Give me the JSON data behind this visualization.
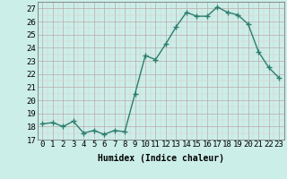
{
  "x": [
    0,
    1,
    2,
    3,
    4,
    5,
    6,
    7,
    8,
    9,
    10,
    11,
    12,
    13,
    14,
    15,
    16,
    17,
    18,
    19,
    20,
    21,
    22,
    23
  ],
  "y": [
    18.2,
    18.3,
    18.0,
    18.4,
    17.5,
    17.7,
    17.4,
    17.7,
    17.6,
    20.5,
    23.4,
    23.1,
    24.3,
    25.6,
    26.7,
    26.4,
    26.4,
    27.1,
    26.7,
    26.5,
    25.8,
    23.7,
    22.5,
    21.7
  ],
  "line_color": "#2d7d6e",
  "marker": "+",
  "marker_size": 4,
  "bg_color": "#cceee8",
  "grid_color_major": "#bbaaaa",
  "grid_color_minor": "#ddcccc",
  "xlabel": "Humidex (Indice chaleur)",
  "ylabel": "",
  "title": "",
  "xlim": [
    -0.5,
    23.5
  ],
  "ylim": [
    17,
    27.5
  ],
  "yticks": [
    17,
    18,
    19,
    20,
    21,
    22,
    23,
    24,
    25,
    26,
    27
  ],
  "xticks": [
    0,
    1,
    2,
    3,
    4,
    5,
    6,
    7,
    8,
    9,
    10,
    11,
    12,
    13,
    14,
    15,
    16,
    17,
    18,
    19,
    20,
    21,
    22,
    23
  ],
  "xlabel_fontsize": 7,
  "tick_fontsize": 6.5,
  "linewidth": 1.0
}
